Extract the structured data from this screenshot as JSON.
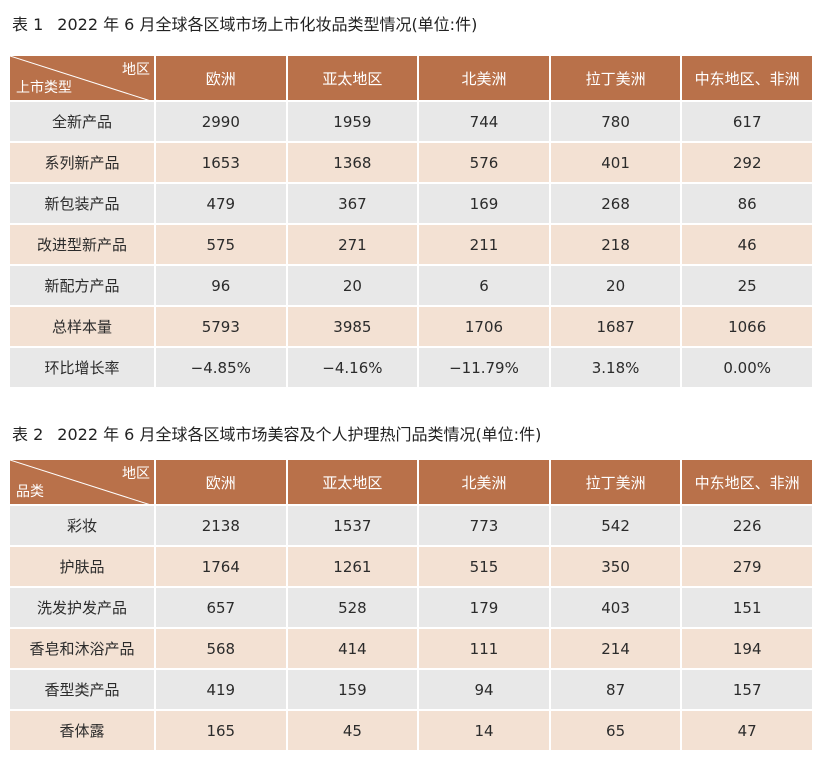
{
  "table1": {
    "label": "表 1",
    "title": "2022 年 6 月全球各区域市场上市化妆品类型情况(单位:件)",
    "corner_top": "地区",
    "corner_bottom": "上市类型",
    "columns": [
      "欧洲",
      "亚太地区",
      "北美洲",
      "拉丁美洲",
      "中东地区、非洲"
    ],
    "rows": [
      {
        "label": "全新产品",
        "values": [
          "2990",
          "1959",
          "744",
          "780",
          "617"
        ]
      },
      {
        "label": "系列新产品",
        "values": [
          "1653",
          "1368",
          "576",
          "401",
          "292"
        ]
      },
      {
        "label": "新包装产品",
        "values": [
          "479",
          "367",
          "169",
          "268",
          "86"
        ]
      },
      {
        "label": "改进型新产品",
        "values": [
          "575",
          "271",
          "211",
          "218",
          "46"
        ]
      },
      {
        "label": "新配方产品",
        "values": [
          "96",
          "20",
          "6",
          "20",
          "25"
        ]
      },
      {
        "label": "总样本量",
        "values": [
          "5793",
          "3985",
          "1706",
          "1687",
          "1066"
        ]
      },
      {
        "label": "环比增长率",
        "values": [
          "−4.85%",
          "−4.16%",
          "−11.79%",
          "3.18%",
          "0.00%"
        ]
      }
    ]
  },
  "table2": {
    "label": "表 2",
    "title": "2022 年 6 月全球各区域市场美容及个人护理热门品类情况(单位:件)",
    "corner_top": "地区",
    "corner_bottom": "品类",
    "columns": [
      "欧洲",
      "亚太地区",
      "北美洲",
      "拉丁美洲",
      "中东地区、非洲"
    ],
    "rows": [
      {
        "label": "彩妆",
        "values": [
          "2138",
          "1537",
          "773",
          "542",
          "226"
        ]
      },
      {
        "label": "护肤品",
        "values": [
          "1764",
          "1261",
          "515",
          "350",
          "279"
        ]
      },
      {
        "label": "洗发护发产品",
        "values": [
          "657",
          "528",
          "179",
          "403",
          "151"
        ]
      },
      {
        "label": "香皂和沐浴产品",
        "values": [
          "568",
          "414",
          "111",
          "214",
          "194"
        ]
      },
      {
        "label": "香型类产品",
        "values": [
          "419",
          "159",
          "94",
          "87",
          "157"
        ]
      },
      {
        "label": "香体露",
        "values": [
          "165",
          "45",
          "14",
          "65",
          "47"
        ]
      }
    ]
  }
}
